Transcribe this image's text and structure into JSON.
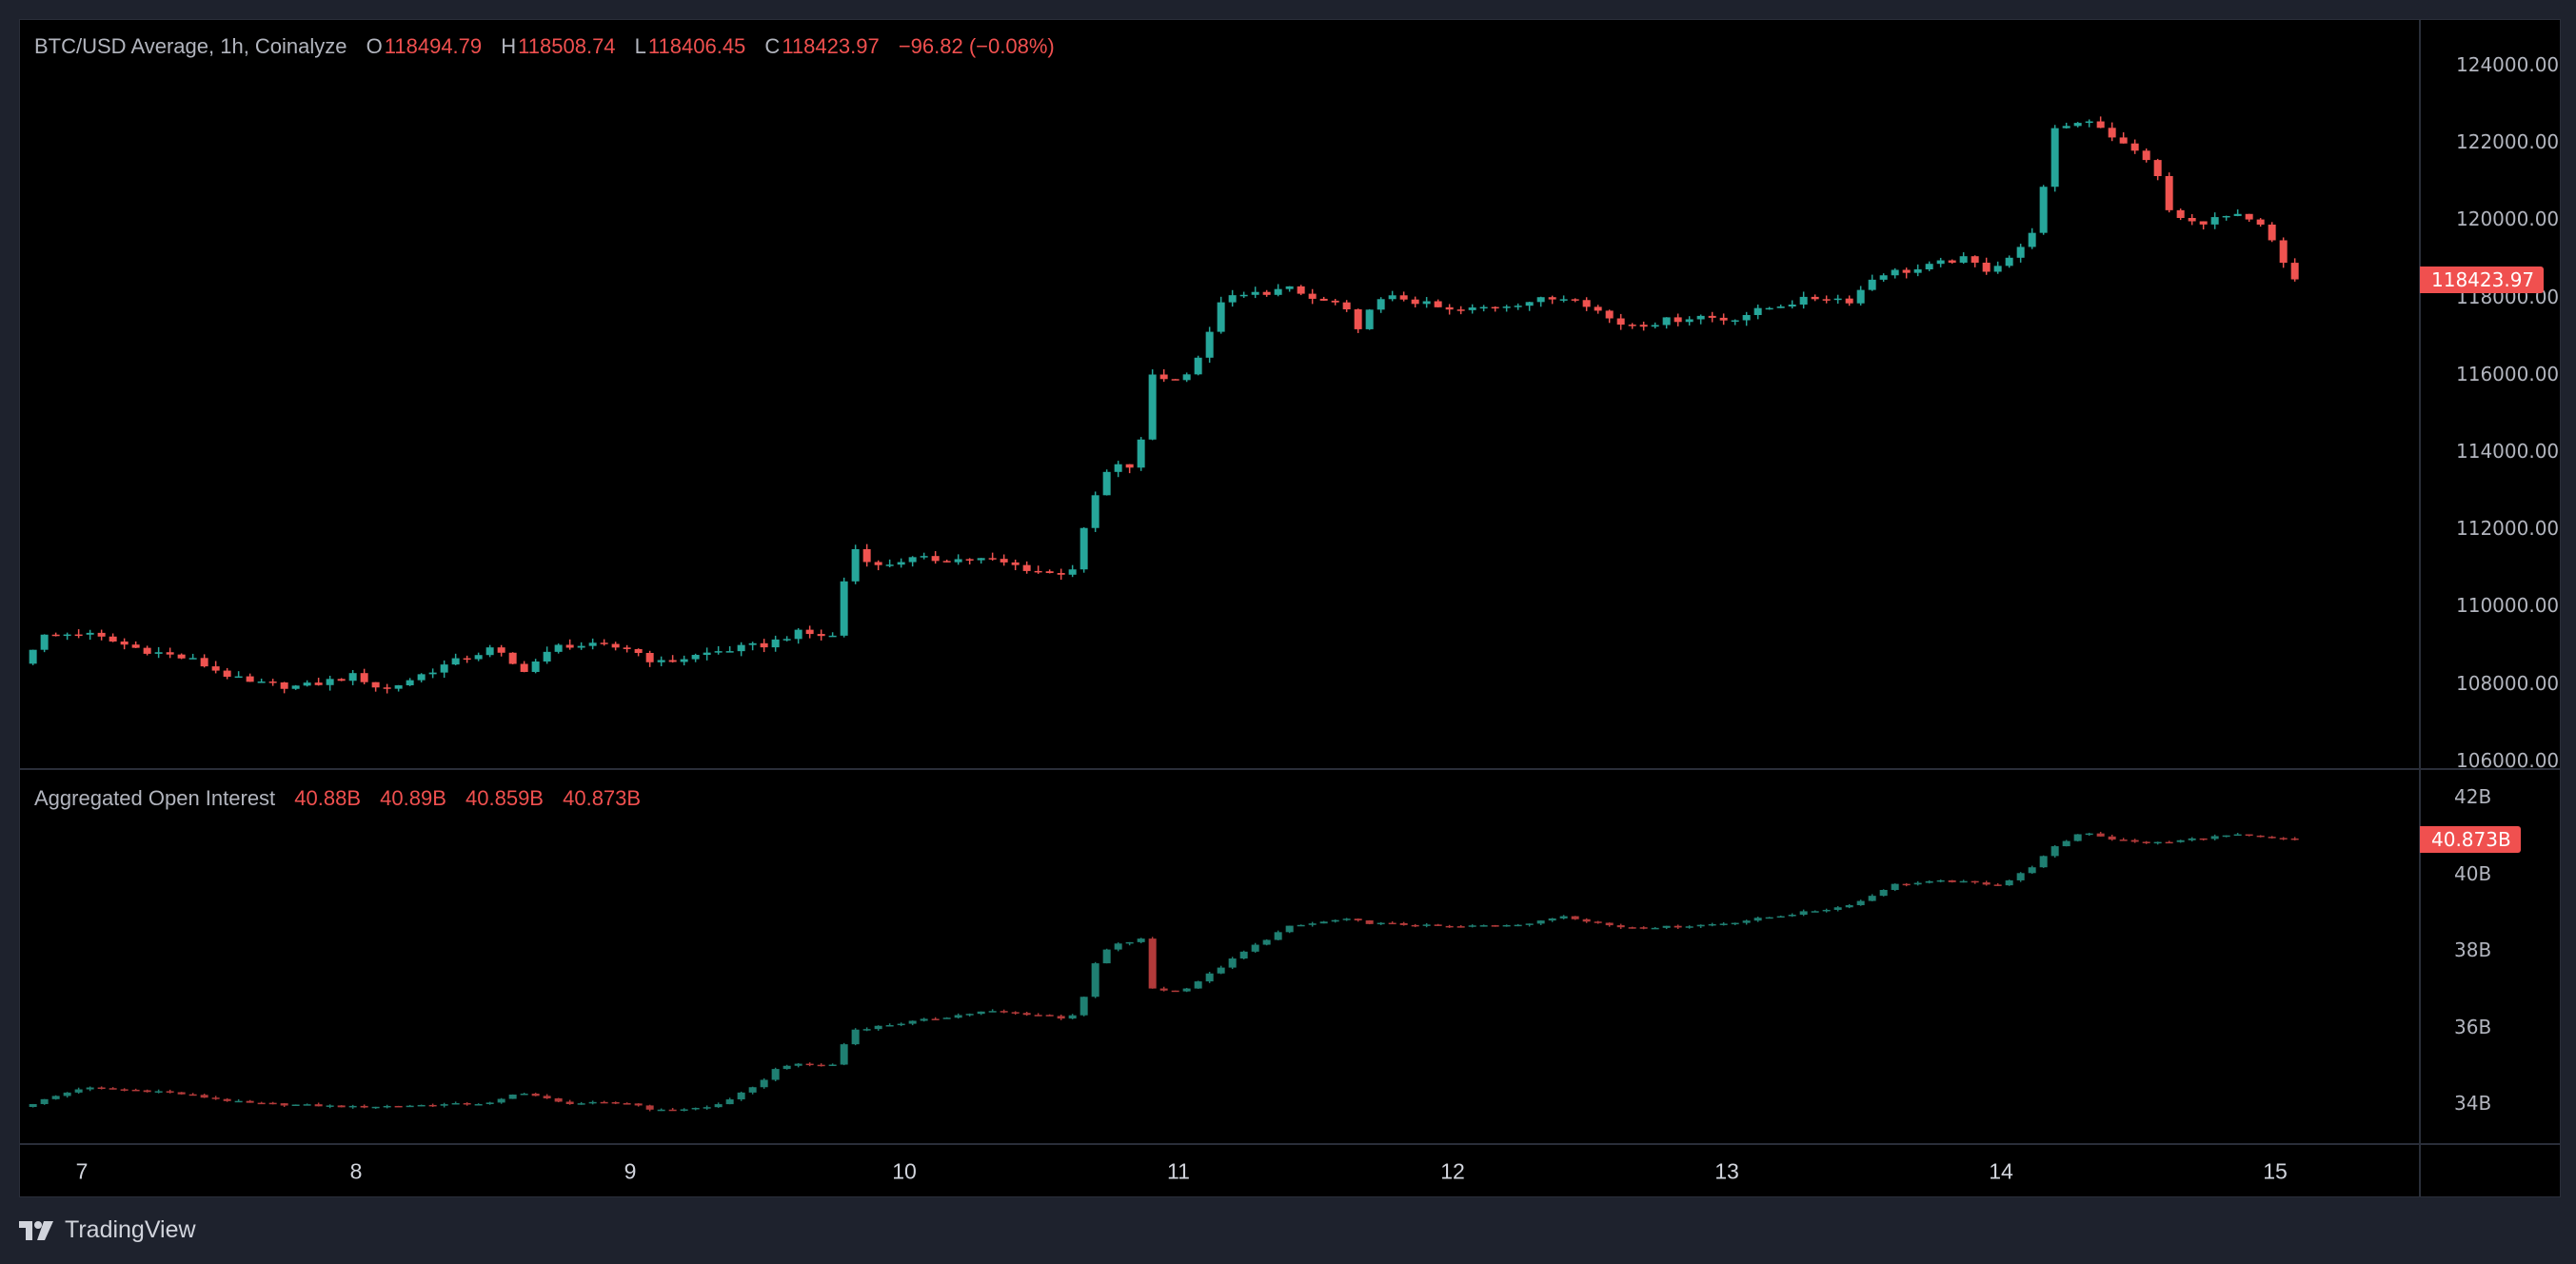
{
  "chart_data": [
    {
      "type": "candlestick",
      "title": "BTC/USD Average, 1h, Coinalyze",
      "ohlc_labels": {
        "o": "O",
        "h": "H",
        "l": "L",
        "c": "C"
      },
      "last_ohlc": {
        "open": "118494.79",
        "high": "118508.74",
        "low": "118406.45",
        "close": "118423.97",
        "change": "−96.82 (−0.08%)"
      },
      "last_price_tag": "118423.97",
      "last_price": 118423.97,
      "ylim": [
        106000,
        124000
      ],
      "y_ticks": [
        "124000.00",
        "122000.00",
        "120000.00",
        "118000.00",
        "116000.00",
        "114000.00",
        "112000.00",
        "110000.00",
        "108000.00",
        "106000.00"
      ],
      "y_tick_values": [
        124000,
        122000,
        120000,
        118000,
        116000,
        114000,
        112000,
        110000,
        108000,
        106000
      ],
      "interval_hours": 1,
      "close_keypoints_day_price": [
        [
          6.78,
          108500
        ],
        [
          6.85,
          109200
        ],
        [
          7.0,
          109300
        ],
        [
          7.2,
          108900
        ],
        [
          7.4,
          108600
        ],
        [
          7.6,
          108000
        ],
        [
          7.8,
          107900
        ],
        [
          8.0,
          108200
        ],
        [
          8.1,
          107800
        ],
        [
          8.3,
          108400
        ],
        [
          8.5,
          108900
        ],
        [
          8.6,
          108300
        ],
        [
          8.75,
          109000
        ],
        [
          9.0,
          108900
        ],
        [
          9.1,
          108500
        ],
        [
          9.3,
          108800
        ],
        [
          9.5,
          109000
        ],
        [
          9.6,
          109300
        ],
        [
          9.75,
          109200
        ],
        [
          9.8,
          111600
        ],
        [
          9.9,
          111000
        ],
        [
          10.0,
          111200
        ],
        [
          10.3,
          111200
        ],
        [
          10.55,
          110800
        ],
        [
          10.62,
          111000
        ],
        [
          10.68,
          112600
        ],
        [
          10.75,
          113600
        ],
        [
          10.85,
          113600
        ],
        [
          10.9,
          116000
        ],
        [
          11.0,
          115800
        ],
        [
          11.1,
          116700
        ],
        [
          11.15,
          117900
        ],
        [
          11.3,
          118100
        ],
        [
          11.4,
          118200
        ],
        [
          11.5,
          117900
        ],
        [
          11.6,
          117800
        ],
        [
          11.65,
          117000
        ],
        [
          11.7,
          117800
        ],
        [
          11.8,
          118000
        ],
        [
          12.0,
          117600
        ],
        [
          12.3,
          117900
        ],
        [
          12.45,
          118000
        ],
        [
          12.6,
          117300
        ],
        [
          12.7,
          117300
        ],
        [
          12.9,
          117500
        ],
        [
          13.0,
          117400
        ],
        [
          13.2,
          117800
        ],
        [
          13.35,
          118000
        ],
        [
          13.45,
          117900
        ],
        [
          13.55,
          118600
        ],
        [
          13.7,
          118700
        ],
        [
          13.85,
          119000
        ],
        [
          13.95,
          118700
        ],
        [
          14.05,
          119100
        ],
        [
          14.1,
          119400
        ],
        [
          14.15,
          120600
        ],
        [
          14.2,
          122400
        ],
        [
          14.28,
          122500
        ],
        [
          14.33,
          122600
        ],
        [
          14.45,
          121900
        ],
        [
          14.55,
          121500
        ],
        [
          14.62,
          120100
        ],
        [
          14.7,
          119900
        ],
        [
          14.85,
          120100
        ],
        [
          14.95,
          119800
        ],
        [
          15.0,
          119300
        ],
        [
          15.05,
          118500
        ],
        [
          15.08,
          118424
        ]
      ],
      "colors": {
        "up": "#26a69a",
        "down": "#ef5350"
      }
    },
    {
      "type": "candlestick",
      "title": "Aggregated Open Interest",
      "last_values": [
        "40.88B",
        "40.89B",
        "40.859B",
        "40.873B"
      ],
      "last_value_tag": "40.873B",
      "last_value": 40.873,
      "ylim": [
        33.2,
        42.6
      ],
      "y_ticks": [
        "42B",
        "40B",
        "38B",
        "36B",
        "34B"
      ],
      "y_tick_values": [
        42,
        40,
        38,
        36,
        34
      ],
      "unit": "B",
      "close_keypoints_day_value": [
        [
          6.78,
          33.9
        ],
        [
          7.0,
          34.4
        ],
        [
          7.3,
          34.3
        ],
        [
          7.6,
          34.0
        ],
        [
          8.0,
          33.9
        ],
        [
          8.5,
          34.0
        ],
        [
          8.6,
          34.3
        ],
        [
          8.75,
          34.0
        ],
        [
          9.0,
          34.0
        ],
        [
          9.1,
          33.8
        ],
        [
          9.3,
          33.9
        ],
        [
          9.45,
          34.4
        ],
        [
          9.55,
          35.0
        ],
        [
          9.75,
          35.0
        ],
        [
          9.8,
          35.9
        ],
        [
          10.0,
          36.1
        ],
        [
          10.3,
          36.4
        ],
        [
          10.5,
          36.3
        ],
        [
          10.6,
          36.2
        ],
        [
          10.65,
          36.6
        ],
        [
          10.68,
          37.5
        ],
        [
          10.75,
          38.1
        ],
        [
          10.88,
          38.3
        ],
        [
          10.9,
          37.0
        ],
        [
          11.0,
          36.9
        ],
        [
          11.1,
          37.3
        ],
        [
          11.25,
          38.0
        ],
        [
          11.4,
          38.6
        ],
        [
          11.6,
          38.8
        ],
        [
          11.7,
          38.7
        ],
        [
          12.0,
          38.6
        ],
        [
          12.3,
          38.7
        ],
        [
          12.4,
          38.9
        ],
        [
          12.6,
          38.6
        ],
        [
          12.8,
          38.6
        ],
        [
          13.0,
          38.7
        ],
        [
          13.2,
          38.9
        ],
        [
          13.4,
          39.1
        ],
        [
          13.5,
          39.3
        ],
        [
          13.6,
          39.7
        ],
        [
          13.8,
          39.8
        ],
        [
          14.0,
          39.7
        ],
        [
          14.1,
          40.1
        ],
        [
          14.2,
          40.7
        ],
        [
          14.3,
          41.1
        ],
        [
          14.4,
          40.9
        ],
        [
          14.5,
          40.8
        ],
        [
          14.6,
          40.8
        ],
        [
          14.7,
          40.9
        ],
        [
          14.85,
          41.0
        ],
        [
          15.0,
          40.9
        ],
        [
          15.08,
          40.873
        ]
      ],
      "colors": {
        "up": "#1f7f72",
        "down": "#b23a3a"
      }
    }
  ],
  "x_axis": {
    "ticks": [
      "7",
      "8",
      "9",
      "10",
      "11",
      "12",
      "13",
      "14",
      "15"
    ],
    "tick_days": [
      7,
      8,
      9,
      10,
      11,
      12,
      13,
      14,
      15
    ]
  },
  "branding": {
    "name": "TradingView"
  }
}
